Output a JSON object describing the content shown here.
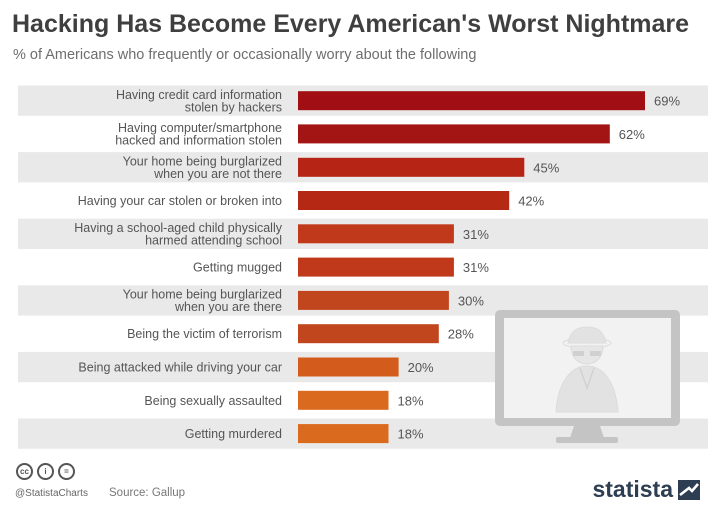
{
  "header": {
    "title": "Hacking Has Become Every American's Worst Nightmare",
    "subtitle": "% of Americans who frequently or occasionally worry about the following"
  },
  "chart_data": {
    "type": "bar",
    "orientation": "horizontal",
    "categories": [
      [
        "Having credit card information",
        "stolen by hackers"
      ],
      [
        "Having computer/smartphone",
        "hacked and information stolen"
      ],
      [
        "Your home being burglarized",
        "when you are not there"
      ],
      [
        "Having your car stolen or broken into"
      ],
      [
        "Having a school-aged child physically",
        "harmed attending school"
      ],
      [
        "Getting mugged"
      ],
      [
        "Your home being burglarized",
        "when you are there"
      ],
      [
        "Being the victim of terrorism"
      ],
      [
        "Being attacked while driving your car"
      ],
      [
        "Being sexually assaulted"
      ],
      [
        "Getting murdered"
      ]
    ],
    "values": [
      69,
      62,
      45,
      42,
      31,
      31,
      30,
      28,
      20,
      18,
      18
    ],
    "value_labels": [
      "69%",
      "62%",
      "45%",
      "42%",
      "31%",
      "31%",
      "30%",
      "28%",
      "20%",
      "18%",
      "18%"
    ],
    "bar_colors": [
      "#a10f14",
      "#a31414",
      "#b52414",
      "#b52814",
      "#c0391a",
      "#c0391a",
      "#c2461d",
      "#c2461d",
      "#d35c1d",
      "#d96a1e",
      "#d96a1e"
    ],
    "xlim": [
      0,
      69
    ],
    "unit": "%",
    "stripe_color": "#e9e9e9"
  },
  "footer": {
    "license_icons": [
      "cc",
      "i",
      "="
    ],
    "handle": "@StatistaCharts",
    "source": "Source: Gallup",
    "brand": "statista"
  },
  "colors": {
    "title": "#3f3f3f",
    "subtitle": "#6e6e6e",
    "label": "#555555",
    "monitor_frame": "#c4c4c4",
    "monitor_screen": "#f2f2f2"
  }
}
